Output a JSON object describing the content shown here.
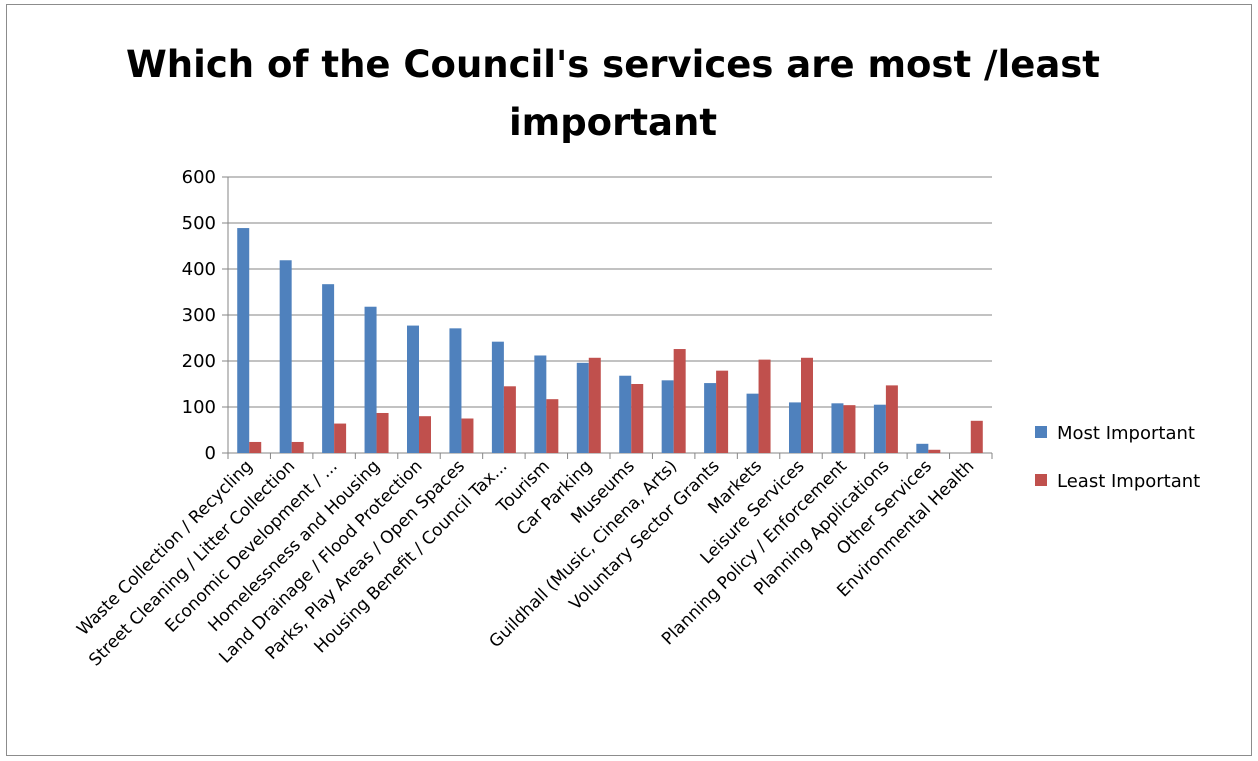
{
  "chart_data": {
    "type": "bar",
    "title_lines": [
      "Which of the Council's services are most /least",
      "important"
    ],
    "categories": [
      "Waste Collection / Recycling",
      "Street Cleaning / Litter Collection",
      "Economic Development / ...",
      "Homelessness and Housing",
      "Land Drainage / Flood Protection",
      "Parks, Play Areas / Open Spaces",
      "Housing Benefit / Council Tax...",
      "Tourism",
      "Car Parking",
      "Museums",
      "Guildhall (Music, Cinena, Arts)",
      "Voluntary Sector Grants",
      "Markets",
      "Leisure Services",
      "Planning Policy / Enforcement",
      "Planning Applications",
      "Other Services",
      "Environmental Health"
    ],
    "series": [
      {
        "name": "Most Important",
        "color": "#4f81bd",
        "values": [
          489,
          419,
          367,
          318,
          277,
          271,
          242,
          212,
          196,
          168,
          158,
          152,
          129,
          110,
          108,
          105,
          20,
          0
        ]
      },
      {
        "name": "Least Important",
        "color": "#c0504d",
        "values": [
          24,
          24,
          64,
          87,
          80,
          75,
          145,
          117,
          207,
          150,
          226,
          179,
          203,
          207,
          104,
          147,
          7,
          70
        ]
      }
    ],
    "y_ticks": [
      "0",
      "100",
      "200",
      "300",
      "400",
      "500",
      "600"
    ],
    "ylim": [
      0,
      600
    ],
    "grid": true,
    "legend_position": "right",
    "xlabel": "",
    "ylabel": ""
  }
}
